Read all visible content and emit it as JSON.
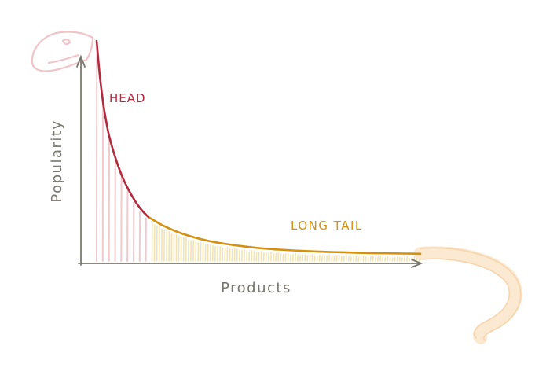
{
  "chart_data": {
    "type": "area",
    "title": "",
    "xlabel": "Products",
    "ylabel": "Popularity",
    "annotations": [
      {
        "text": "HEAD",
        "color": "#b22a3e"
      },
      {
        "text": "LONG TAIL",
        "color": "#d4900f"
      }
    ],
    "x_range": [
      0,
      100
    ],
    "y_range": [
      0,
      100
    ],
    "grid": false,
    "legend": "none",
    "series": [
      {
        "segment": "head",
        "color": "#b22a3e",
        "fill_color": "#f2c9cf",
        "x": [
          0,
          1,
          2,
          3,
          4,
          6,
          8,
          10,
          12,
          14,
          16
        ],
        "y": [
          100,
          84,
          72,
          63,
          56,
          46,
          38,
          32,
          27,
          23,
          20
        ]
      },
      {
        "segment": "long-tail",
        "color": "#d4900f",
        "fill_color": "#f3e3b3",
        "x": [
          16,
          20,
          25,
          30,
          35,
          40,
          45,
          50,
          55,
          60,
          65,
          70,
          75,
          80,
          85,
          90,
          95,
          100
        ],
        "y": [
          20,
          16.5,
          13.2,
          10.8,
          9.0,
          7.7,
          6.7,
          5.9,
          5.3,
          4.9,
          4.5,
          4.2,
          4.0,
          3.8,
          3.6,
          3.5,
          3.4,
          3.3
        ]
      }
    ]
  },
  "decor": {
    "creature_head_icon": "dino-head-icon",
    "creature_tail_icon": "dino-tail-icon",
    "axis_color": "#7a7a70",
    "label_color": "#77776d"
  }
}
